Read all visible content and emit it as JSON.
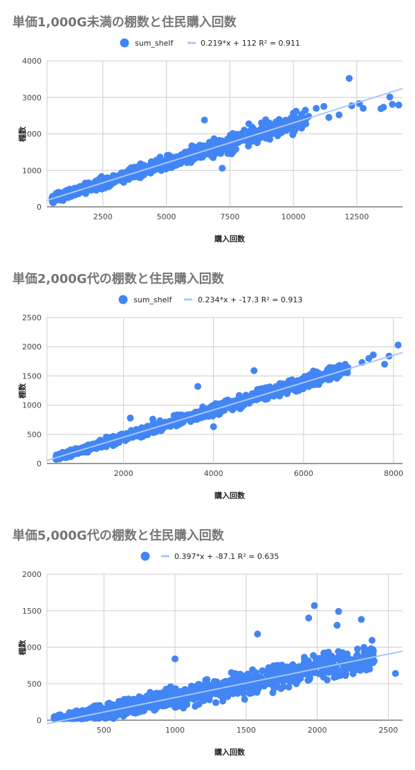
{
  "colors": {
    "points": "#4285f4",
    "trend": "#a8c7fa",
    "grid": "#cccccc",
    "axis": "#333333"
  },
  "chart_data": [
    {
      "type": "scatter",
      "title": "単価1,000G未満の棚数と住民購入回数",
      "xlabel": "購入回数",
      "ylabel": "棚数",
      "legend": {
        "placement": "top-center",
        "series_label": "sum_shelf",
        "trend_label": "0.219*x + 112 R² = 0.911"
      },
      "xlim": [
        300,
        14300
      ],
      "ylim": [
        0,
        4000
      ],
      "xticks": [
        2500,
        5000,
        7500,
        10000,
        12500
      ],
      "xtick_labels": [
        "2500",
        "5000",
        "7500",
        "10000",
        "12500"
      ],
      "yticks": [
        0,
        1000,
        2000,
        3000,
        4000
      ],
      "ytick_labels": [
        "0",
        "1000",
        "2000",
        "3000",
        "4000"
      ],
      "trendline": {
        "slope": 0.219,
        "intercept": 112,
        "r2": 0.911
      },
      "outliers": [
        [
          12200,
          3520
        ],
        [
          13800,
          3010
        ],
        [
          12300,
          2770
        ],
        [
          12600,
          2830
        ],
        [
          12750,
          2700
        ],
        [
          13450,
          2690
        ],
        [
          13550,
          2730
        ],
        [
          13900,
          2810
        ],
        [
          14150,
          2790
        ],
        [
          11400,
          2450
        ],
        [
          10900,
          2700
        ],
        [
          11200,
          2750
        ],
        [
          6500,
          2380
        ],
        [
          7200,
          1060
        ],
        [
          10600,
          2480
        ],
        [
          11800,
          2520
        ]
      ],
      "cloud": {
        "x_min": 500,
        "x_max": 10500,
        "spread": 230,
        "count": 900
      }
    },
    {
      "type": "scatter",
      "title": "単価2,000G代の棚数と住民購入回数",
      "xlabel": "購入回数",
      "ylabel": "棚数",
      "legend": {
        "placement": "top-center",
        "series_label": "sum_shelf",
        "trend_label": "0.234*x + -17.3 R² = 0.913"
      },
      "xlim": [
        300,
        8200
      ],
      "ylim": [
        0,
        2500
      ],
      "xticks": [
        2000,
        4000,
        6000,
        8000
      ],
      "xtick_labels": [
        "2000",
        "4000",
        "6000",
        "8000"
      ],
      "yticks": [
        0,
        500,
        1000,
        1500,
        2000,
        2500
      ],
      "ytick_labels": [
        "0",
        "500",
        "1000",
        "1500",
        "2000",
        "2500"
      ],
      "trendline": {
        "slope": 0.234,
        "intercept": -17.3,
        "r2": 0.913
      },
      "outliers": [
        [
          8100,
          2030
        ],
        [
          7900,
          1840
        ],
        [
          7550,
          1860
        ],
        [
          7450,
          1800
        ],
        [
          7300,
          1730
        ],
        [
          7800,
          1700
        ],
        [
          6800,
          1680
        ],
        [
          6900,
          1560
        ],
        [
          4900,
          1590
        ],
        [
          3650,
          1320
        ],
        [
          4000,
          630
        ],
        [
          2650,
          760
        ],
        [
          2150,
          780
        ]
      ],
      "cloud": {
        "x_min": 500,
        "x_max": 7000,
        "spread": 110,
        "count": 900
      }
    },
    {
      "type": "scatter",
      "title": "単価5,000G代の棚数と住民購入回数",
      "xlabel": "購入回数",
      "ylabel": "棚数",
      "legend": {
        "placement": "top-center",
        "series_label": "",
        "trend_label": "0.397*x + -87.1 R² = 0.635"
      },
      "xlim": [
        100,
        2600
      ],
      "ylim": [
        0,
        2000
      ],
      "xticks": [
        500,
        1000,
        1500,
        2000,
        2500
      ],
      "xtick_labels": [
        "500",
        "1000",
        "1500",
        "2000",
        "2500"
      ],
      "yticks": [
        0,
        500,
        1000,
        1500,
        2000
      ],
      "ytick_labels": [
        "0",
        "500",
        "1000",
        "1500",
        "2000"
      ],
      "trendline": {
        "slope": 0.397,
        "intercept": -87.1,
        "r2": 0.635
      },
      "outliers": [
        [
          1980,
          1570
        ],
        [
          2150,
          1490
        ],
        [
          2310,
          1380
        ],
        [
          2550,
          640
        ],
        [
          2400,
          810
        ],
        [
          1940,
          1400
        ],
        [
          2140,
          1300
        ],
        [
          1000,
          840
        ],
        [
          1580,
          1180
        ]
      ],
      "cloud": {
        "x_min": 150,
        "x_max": 2400,
        "spread": 170,
        "count": 1100
      }
    }
  ]
}
